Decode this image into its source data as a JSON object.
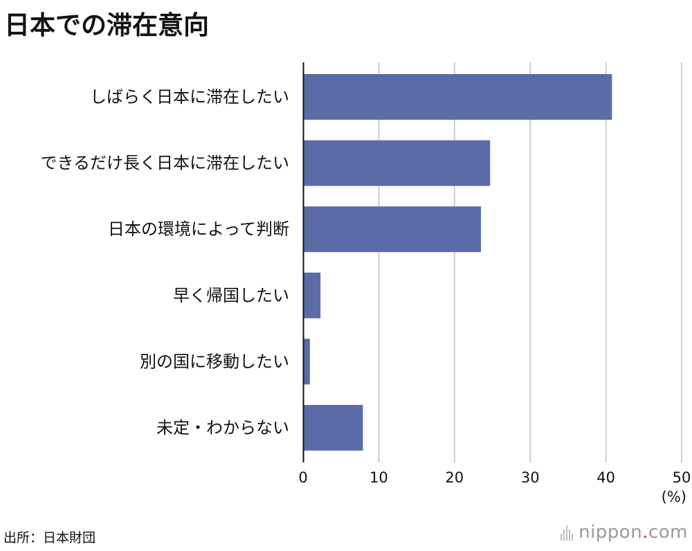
{
  "title": "日本での滞在意向",
  "chart_data": {
    "type": "bar",
    "orientation": "horizontal",
    "categories": [
      "しばらく日本に滞在したい",
      "できるだけ長く日本に滞在したい",
      "日本の環境によって判断",
      "早く帰国したい",
      "別の国に移動したい",
      "未定・わからない"
    ],
    "values": [
      40.8,
      24.7,
      23.5,
      2.3,
      0.9,
      7.9
    ],
    "xlim": [
      0,
      50
    ],
    "xticks": [
      "0",
      "10",
      "20",
      "30",
      "40",
      "50"
    ],
    "unit_label": "(%)",
    "grid": true,
    "bar_color": "#5a6ca7",
    "grid_color": "#cccccc"
  },
  "source": "出所：日本財団",
  "logo": {
    "main": "nippon",
    "dot": ".",
    "suffix": "com"
  }
}
